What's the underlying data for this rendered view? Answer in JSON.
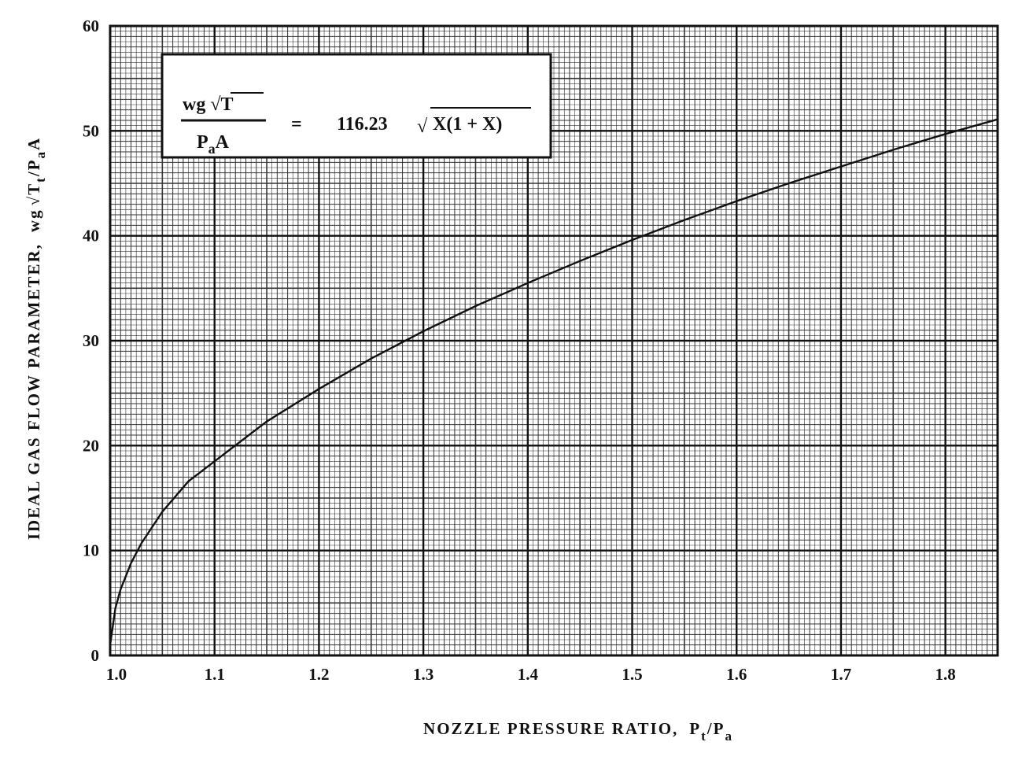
{
  "chart_data": {
    "type": "line",
    "xlabel": {
      "text": "NOZZLE PRESSURE RATIO,",
      "p1": "P",
      "sub1": "t",
      "slash": "/P",
      "sub2": "a"
    },
    "ylabel": {
      "text": "IDEAL GAS FLOW PARAMETER,",
      "wg": "wg",
      "root": "√",
      "t": "T",
      "sub1": "t",
      "slash": "/P",
      "sub2": "a",
      "a": "A"
    },
    "annotation": {
      "numerator": "wg √T",
      "den_p": "P",
      "den_sub": "a",
      "den_a": "A",
      "equals": "=",
      "coefficient": "116.23",
      "root": "√",
      "radicand": "X(1 + X)"
    },
    "x": [
      1.0,
      1.005,
      1.01,
      1.02,
      1.03,
      1.05,
      1.075,
      1.1,
      1.15,
      1.2,
      1.25,
      1.3,
      1.35,
      1.4,
      1.45,
      1.5,
      1.55,
      1.6,
      1.65,
      1.7,
      1.75,
      1.8,
      1.85
    ],
    "values": [
      1,
      4.5,
      6.3,
      8.8,
      10.7,
      13.7,
      16.6,
      18.5,
      22.3,
      25.4,
      28.3,
      30.9,
      33.3,
      35.5,
      37.6,
      39.6,
      41.5,
      43.3,
      45.0,
      46.6,
      48.2,
      49.7,
      51.1
    ],
    "color": "#111111",
    "xlim": [
      1.0,
      1.85
    ],
    "ylim": [
      0,
      60
    ],
    "xticks": [
      {
        "value": 1.0,
        "label": "1.0"
      },
      1.1,
      1.2,
      1.3,
      1.4,
      1.5,
      1.6,
      1.7,
      1.8
    ],
    "yticks": [
      0,
      10,
      20,
      30,
      40,
      50,
      60
    ],
    "grid": true,
    "minor_grid": true
  }
}
